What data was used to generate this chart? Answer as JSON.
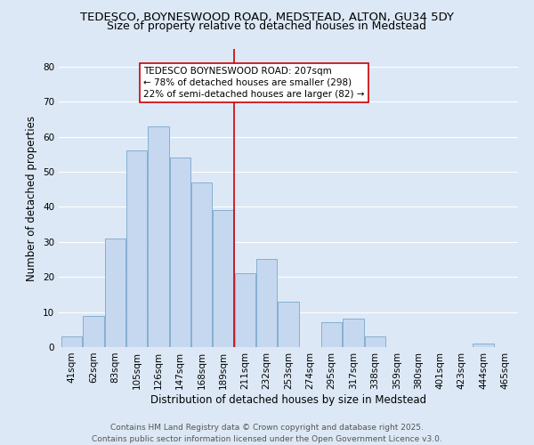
{
  "title": "TEDESCO, BOYNESWOOD ROAD, MEDSTEAD, ALTON, GU34 5DY",
  "subtitle": "Size of property relative to detached houses in Medstead",
  "xlabel": "Distribution of detached houses by size in Medstead",
  "ylabel": "Number of detached properties",
  "categories": [
    "41sqm",
    "62sqm",
    "83sqm",
    "105sqm",
    "126sqm",
    "147sqm",
    "168sqm",
    "189sqm",
    "211sqm",
    "232sqm",
    "253sqm",
    "274sqm",
    "295sqm",
    "317sqm",
    "338sqm",
    "359sqm",
    "380sqm",
    "401sqm",
    "423sqm",
    "444sqm",
    "465sqm"
  ],
  "values": [
    3,
    9,
    31,
    56,
    63,
    54,
    47,
    39,
    21,
    25,
    13,
    0,
    7,
    8,
    3,
    0,
    0,
    0,
    0,
    1,
    0
  ],
  "bar_color": "#c5d8f0",
  "bar_edge_color": "#7ba7cc",
  "marker_index": 8,
  "marker_line_color": "#cc0000",
  "annotation_text": "TEDESCO BOYNESWOOD ROAD: 207sqm\n← 78% of detached houses are smaller (298)\n22% of semi-detached houses are larger (82) →",
  "annotation_box_color": "#ffffff",
  "annotation_box_edge": "#cc0000",
  "ylim": [
    0,
    85
  ],
  "yticks": [
    0,
    10,
    20,
    30,
    40,
    50,
    60,
    70,
    80
  ],
  "background_color": "#dce8f5",
  "grid_color": "#ffffff",
  "footer_text": "Contains HM Land Registry data © Crown copyright and database right 2025.\nContains public sector information licensed under the Open Government Licence v3.0.",
  "title_fontsize": 9.5,
  "subtitle_fontsize": 9,
  "axis_fontsize": 8.5,
  "tick_fontsize": 7.5,
  "annotation_fontsize": 7.5,
  "footer_fontsize": 6.5
}
